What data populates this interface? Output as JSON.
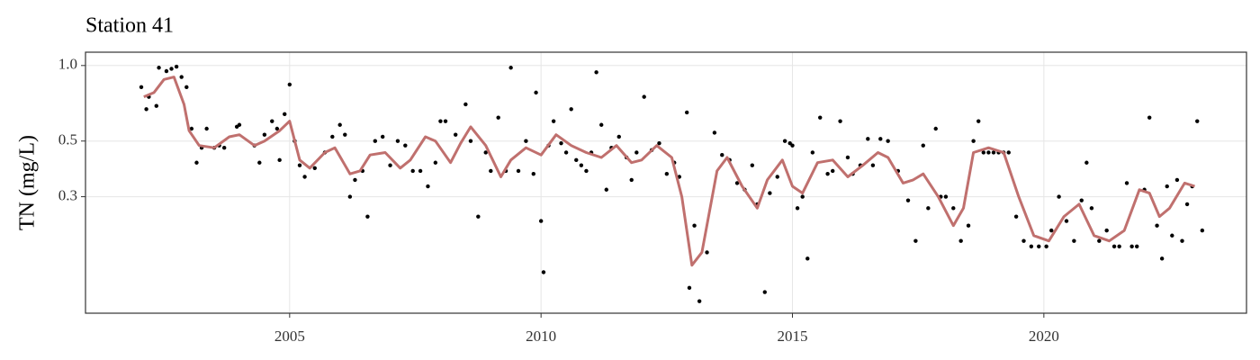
{
  "chart_data": {
    "type": "scatter-smooth",
    "title": "Station 41",
    "y_label": "TN (mg/L)",
    "log_y": true,
    "grid": true,
    "xlim": [
      2000.94,
      2024.03
    ],
    "xticks": [
      2005,
      2010,
      2015,
      2020
    ],
    "ylim": [
      0.103,
      1.13
    ],
    "yticks": [
      0.3,
      0.5,
      {
        "value": 1,
        "label": "1.0"
      }
    ],
    "points": {
      "color": "#000000",
      "x": [
        2002.05,
        2002.15,
        2002.2,
        2002.35,
        2002.4,
        2002.55,
        2002.65,
        2002.75,
        2002.85,
        2002.95,
        2003.05,
        2003.15,
        2003.25,
        2003.35,
        2003.5,
        2003.6,
        2003.7,
        2003.95,
        2004.0,
        2004.3,
        2004.4,
        2004.5,
        2004.65,
        2004.75,
        2004.8,
        2004.9,
        2005.0,
        2005.1,
        2005.2,
        2005.3,
        2005.5,
        2005.7,
        2005.85,
        2006.0,
        2006.1,
        2006.2,
        2006.3,
        2006.45,
        2006.55,
        2006.7,
        2006.85,
        2007.0,
        2007.15,
        2007.3,
        2007.45,
        2007.6,
        2007.75,
        2007.9,
        2008.0,
        2008.1,
        2008.3,
        2008.5,
        2008.6,
        2008.75,
        2008.9,
        2009.0,
        2009.15,
        2009.3,
        2009.4,
        2009.55,
        2009.7,
        2009.85,
        2009.9,
        2010.0,
        2010.05,
        2010.15,
        2010.25,
        2010.4,
        2010.5,
        2010.6,
        2010.7,
        2010.8,
        2010.9,
        2011.0,
        2011.1,
        2011.2,
        2011.3,
        2011.4,
        2011.55,
        2011.7,
        2011.8,
        2011.9,
        2012.05,
        2012.2,
        2012.35,
        2012.5,
        2012.65,
        2012.75,
        2012.9,
        2012.95,
        2013.05,
        2013.15,
        2013.3,
        2013.45,
        2013.6,
        2013.75,
        2013.9,
        2014.05,
        2014.2,
        2014.3,
        2014.45,
        2014.55,
        2014.7,
        2014.85,
        2014.95,
        2015.0,
        2015.1,
        2015.2,
        2015.3,
        2015.4,
        2015.55,
        2015.7,
        2015.8,
        2015.95,
        2016.1,
        2016.2,
        2016.35,
        2016.5,
        2016.6,
        2016.75,
        2016.9,
        2017.1,
        2017.3,
        2017.45,
        2017.6,
        2017.7,
        2017.85,
        2017.95,
        2018.05,
        2018.2,
        2018.35,
        2018.5,
        2018.6,
        2018.7,
        2018.8,
        2018.9,
        2019.0,
        2019.1,
        2019.2,
        2019.3,
        2019.45,
        2019.6,
        2019.75,
        2019.9,
        2020.05,
        2020.15,
        2020.3,
        2020.45,
        2020.6,
        2020.75,
        2020.85,
        2020.95,
        2021.1,
        2021.25,
        2021.4,
        2021.5,
        2021.65,
        2021.75,
        2021.85,
        2022.0,
        2022.1,
        2022.25,
        2022.35,
        2022.45,
        2022.55,
        2022.65,
        2022.75,
        2022.85,
        2022.95,
        2023.05,
        2023.15
      ],
      "values": [
        0.82,
        0.67,
        0.75,
        0.69,
        0.98,
        0.95,
        0.97,
        0.99,
        0.9,
        0.82,
        0.56,
        0.41,
        0.47,
        0.56,
        0.47,
        0.48,
        0.47,
        0.57,
        0.58,
        0.48,
        0.41,
        0.53,
        0.6,
        0.56,
        0.42,
        0.64,
        0.84,
        0.5,
        0.4,
        0.36,
        0.39,
        0.45,
        0.52,
        0.58,
        0.53,
        0.3,
        0.35,
        0.38,
        0.25,
        0.5,
        0.52,
        0.4,
        0.5,
        0.48,
        0.38,
        0.38,
        0.33,
        0.41,
        0.6,
        0.6,
        0.53,
        0.7,
        0.5,
        0.25,
        0.45,
        0.38,
        0.62,
        0.38,
        0.98,
        0.38,
        0.5,
        0.37,
        0.78,
        0.24,
        0.15,
        0.48,
        0.6,
        0.49,
        0.45,
        0.67,
        0.42,
        0.4,
        0.38,
        0.45,
        0.94,
        0.58,
        0.32,
        0.47,
        0.52,
        0.43,
        0.35,
        0.45,
        0.75,
        0.46,
        0.49,
        0.37,
        0.41,
        0.36,
        0.65,
        0.13,
        0.23,
        0.115,
        0.18,
        0.54,
        0.44,
        0.42,
        0.34,
        0.32,
        0.4,
        0.28,
        0.125,
        0.31,
        0.36,
        0.5,
        0.49,
        0.48,
        0.27,
        0.3,
        0.17,
        0.45,
        0.62,
        0.37,
        0.38,
        0.6,
        0.43,
        0.37,
        0.4,
        0.51,
        0.4,
        0.51,
        0.5,
        0.38,
        0.29,
        0.2,
        0.48,
        0.27,
        0.56,
        0.3,
        0.3,
        0.27,
        0.2,
        0.23,
        0.5,
        0.6,
        0.45,
        0.45,
        0.45,
        0.45,
        0.45,
        0.45,
        0.25,
        0.2,
        0.19,
        0.19,
        0.19,
        0.22,
        0.3,
        0.24,
        0.2,
        0.29,
        0.41,
        0.27,
        0.2,
        0.22,
        0.19,
        0.19,
        0.34,
        0.19,
        0.19,
        0.32,
        0.62,
        0.23,
        0.17,
        0.33,
        0.21,
        0.35,
        0.2,
        0.28,
        0.33,
        0.6,
        0.22
      ]
    },
    "smooth": {
      "color": "#c0706e",
      "x": [
        2002.1,
        2002.3,
        2002.5,
        2002.7,
        2002.9,
        2003.0,
        2003.2,
        2003.5,
        2003.8,
        2004.0,
        2004.3,
        2004.5,
        2004.8,
        2005.0,
        2005.2,
        2005.4,
        2005.7,
        2005.9,
        2006.2,
        2006.4,
        2006.6,
        2006.9,
        2007.2,
        2007.4,
        2007.7,
        2007.9,
        2008.2,
        2008.4,
        2008.6,
        2008.9,
        2009.2,
        2009.4,
        2009.7,
        2010.0,
        2010.3,
        2010.6,
        2010.9,
        2011.2,
        2011.5,
        2011.8,
        2012.0,
        2012.3,
        2012.6,
        2012.8,
        2013.0,
        2013.2,
        2013.5,
        2013.7,
        2014.0,
        2014.3,
        2014.5,
        2014.8,
        2015.0,
        2015.2,
        2015.5,
        2015.8,
        2016.1,
        2016.4,
        2016.7,
        2016.9,
        2017.2,
        2017.4,
        2017.6,
        2017.9,
        2018.2,
        2018.4,
        2018.6,
        2018.9,
        2019.2,
        2019.5,
        2019.8,
        2020.1,
        2020.4,
        2020.7,
        2021.0,
        2021.3,
        2021.6,
        2021.9,
        2022.1,
        2022.3,
        2022.5,
        2022.8,
        2023.0
      ],
      "values": [
        0.75,
        0.78,
        0.88,
        0.9,
        0.7,
        0.55,
        0.48,
        0.47,
        0.52,
        0.53,
        0.48,
        0.5,
        0.55,
        0.6,
        0.42,
        0.39,
        0.45,
        0.47,
        0.37,
        0.38,
        0.44,
        0.45,
        0.39,
        0.42,
        0.52,
        0.5,
        0.41,
        0.49,
        0.57,
        0.48,
        0.36,
        0.42,
        0.47,
        0.44,
        0.53,
        0.48,
        0.45,
        0.43,
        0.48,
        0.41,
        0.42,
        0.48,
        0.43,
        0.3,
        0.16,
        0.18,
        0.38,
        0.43,
        0.33,
        0.27,
        0.35,
        0.42,
        0.33,
        0.31,
        0.41,
        0.42,
        0.36,
        0.4,
        0.45,
        0.43,
        0.34,
        0.35,
        0.37,
        0.3,
        0.23,
        0.27,
        0.45,
        0.47,
        0.45,
        0.3,
        0.21,
        0.2,
        0.25,
        0.28,
        0.21,
        0.2,
        0.22,
        0.32,
        0.31,
        0.25,
        0.27,
        0.34,
        0.33
      ]
    }
  }
}
